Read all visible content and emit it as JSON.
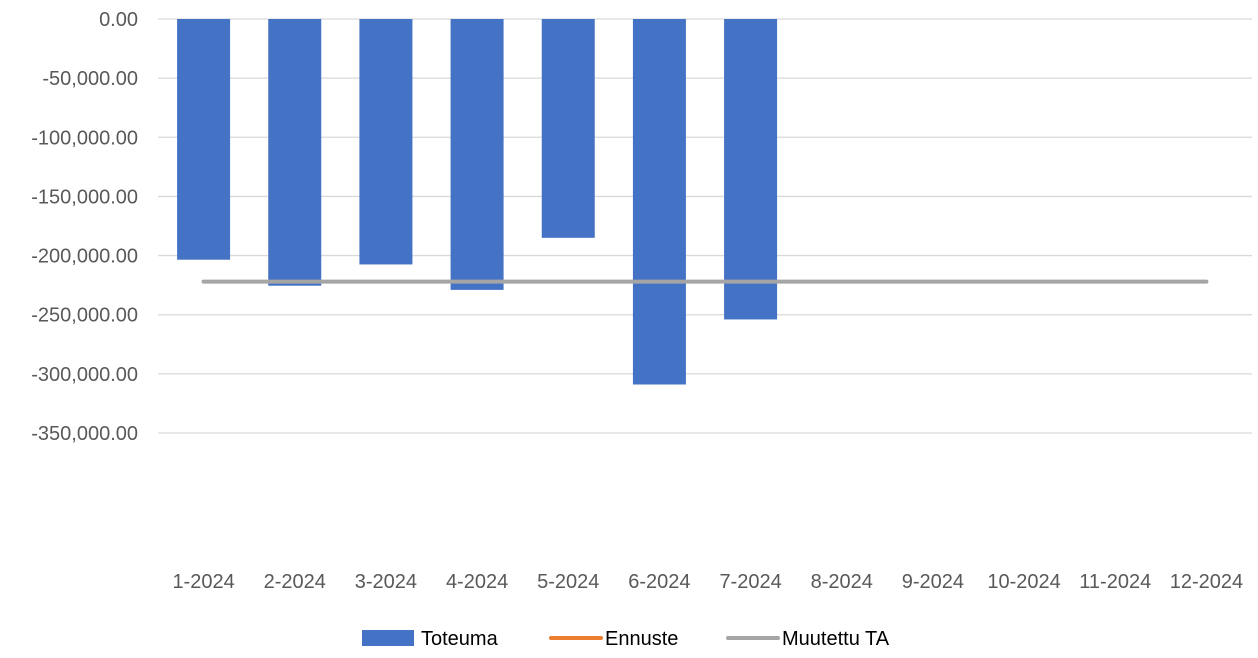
{
  "chart_data": {
    "type": "bar",
    "title": "",
    "xlabel": "",
    "ylabel": "",
    "categories": [
      "1-2024",
      "2-2024",
      "3-2024",
      "4-2024",
      "5-2024",
      "6-2024",
      "7-2024",
      "8-2024",
      "9-2024",
      "10-2024",
      "11-2024",
      "12-2024"
    ],
    "series": [
      {
        "name": "Toteuma",
        "kind": "bar",
        "color": "#4472C4",
        "values": [
          -203500,
          -225500,
          -207500,
          -229000,
          -185000,
          -309000,
          -254000,
          null,
          null,
          null,
          null,
          null
        ]
      },
      {
        "name": "Ennuste",
        "kind": "line",
        "color": "#ED7D31",
        "values": [
          null,
          null,
          null,
          null,
          null,
          null,
          null,
          null,
          null,
          null,
          null,
          null
        ]
      },
      {
        "name": "Muutettu TA",
        "kind": "line",
        "color": "#A5A5A5",
        "values": [
          -222000,
          -222000,
          -222000,
          -222000,
          -222000,
          -222000,
          -222000,
          -222000,
          -222000,
          -222000,
          -222000,
          -222000
        ]
      }
    ],
    "yticks": [
      "0.00",
      "-50,000.00",
      "-100,000.00",
      "-150,000.00",
      "-200,000.00",
      "-250,000.00",
      "-300,000.00",
      "-350,000.00"
    ],
    "ytick_values": [
      0,
      -50000,
      -100000,
      -150000,
      -200000,
      -250000,
      -300000,
      -350000
    ],
    "ylim": [
      -350000,
      0
    ],
    "grid": true,
    "legend_position": "bottom",
    "gridline_color": "#D9D9D9"
  }
}
